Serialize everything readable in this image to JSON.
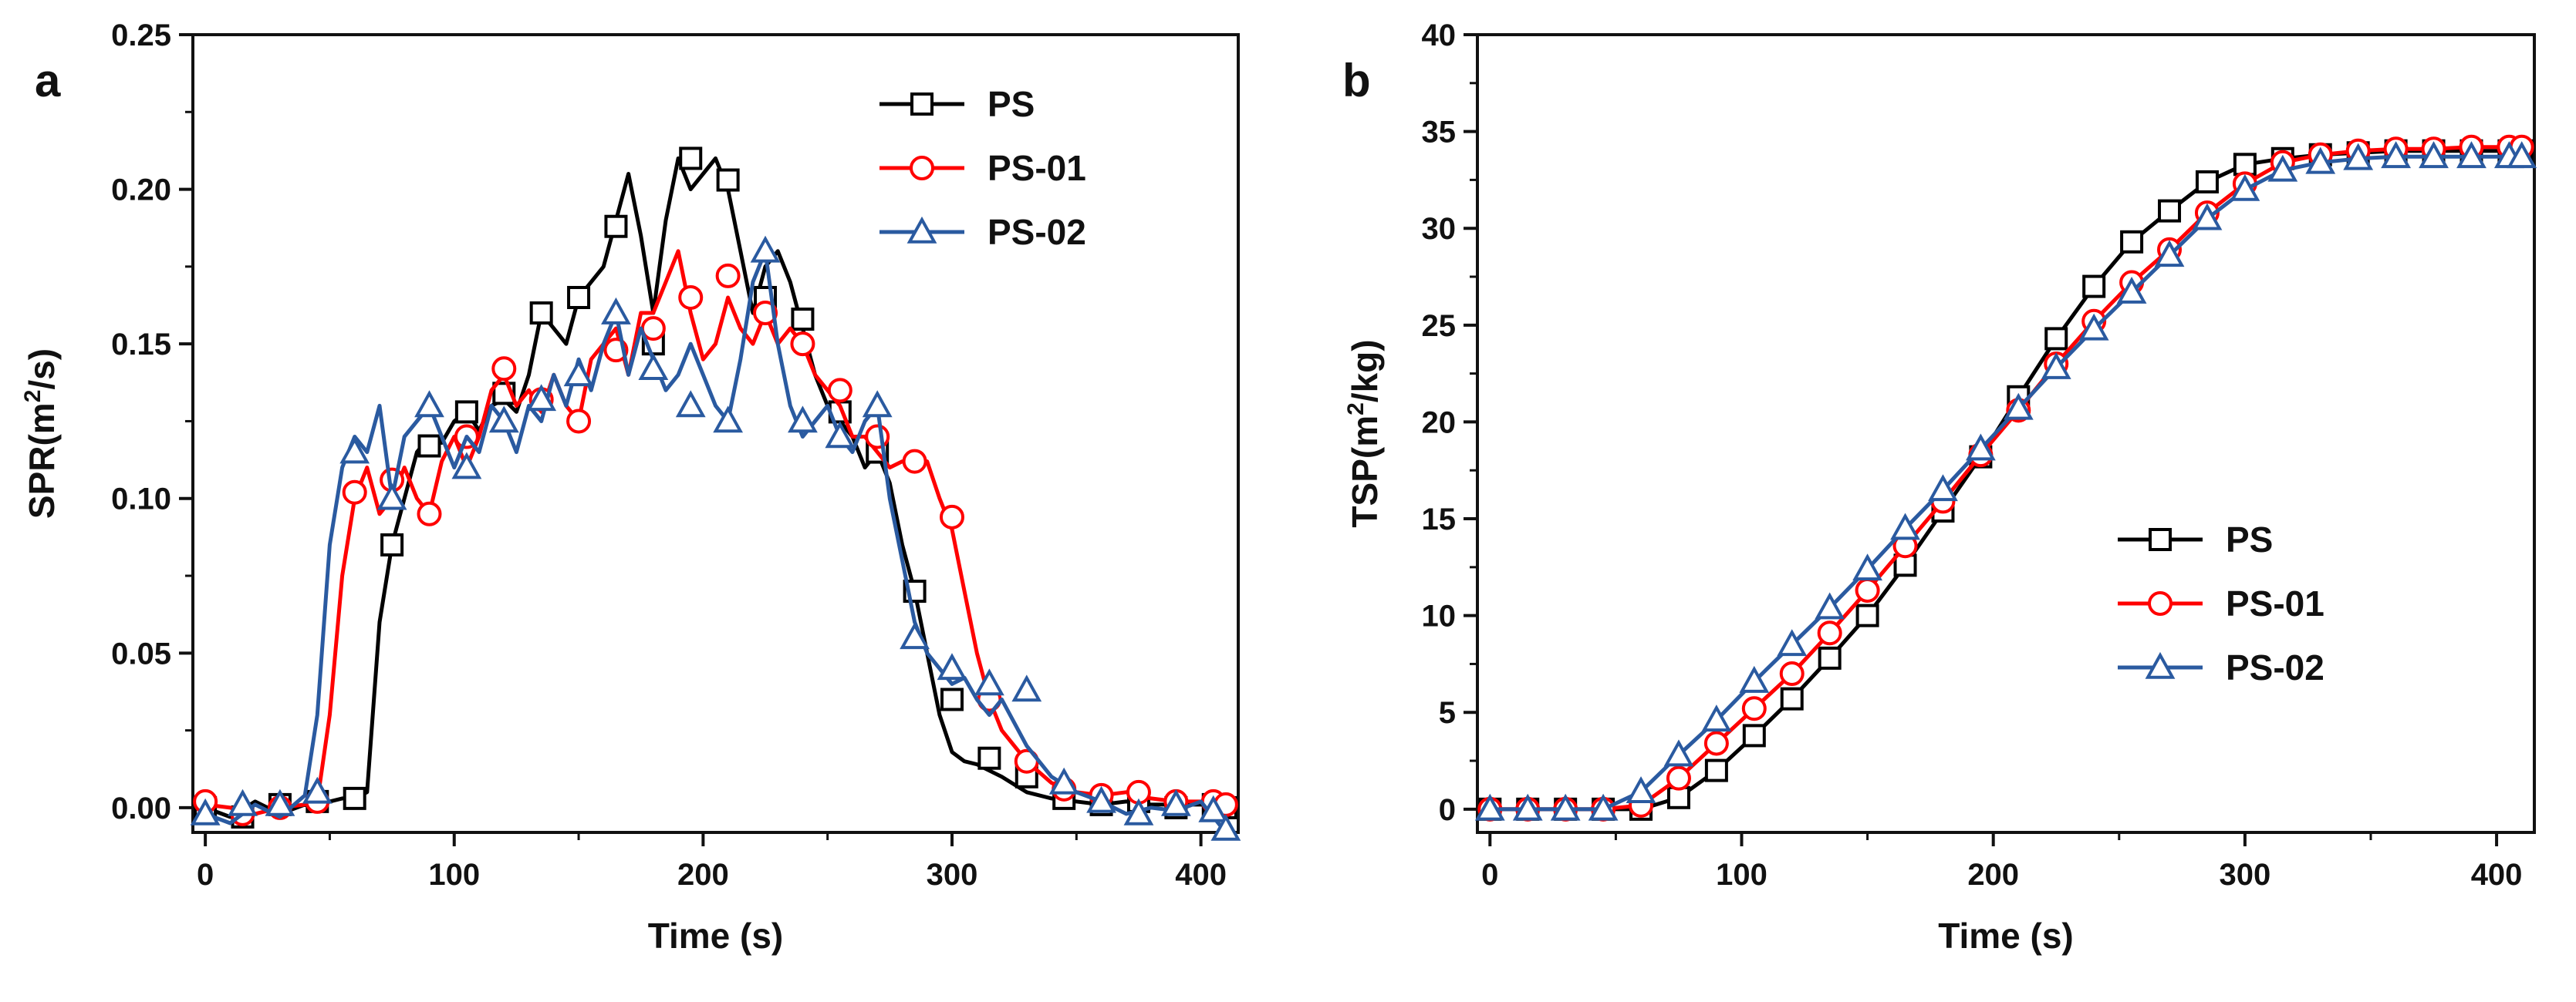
{
  "chart_data": [
    {
      "type": "line",
      "panel": "a",
      "xlabel": "Time (s)",
      "ylabel_main": "SPR(m",
      "ylabel_sup": "2",
      "ylabel_tail": "/s)",
      "xlim": [
        -5,
        415
      ],
      "ylim": [
        -0.008,
        0.25
      ],
      "xticks": [
        0,
        100,
        200,
        300,
        400
      ],
      "xtick_labels": [
        "0",
        "100",
        "200",
        "300",
        "400"
      ],
      "yticks": [
        0.0,
        0.05,
        0.1,
        0.15,
        0.2,
        0.25
      ],
      "ytick_labels": [
        "0.00",
        "0.05",
        "0.10",
        "0.15",
        "0.20",
        "0.25"
      ],
      "legend_position": "top-right",
      "series": [
        {
          "name": "PS",
          "color": "#000000",
          "marker": "square",
          "x": [
            0,
            10,
            20,
            30,
            40,
            45,
            50,
            55,
            60,
            65,
            70,
            75,
            80,
            85,
            90,
            95,
            100,
            105,
            110,
            115,
            120,
            125,
            130,
            135,
            140,
            145,
            150,
            155,
            160,
            165,
            170,
            175,
            180,
            185,
            190,
            195,
            200,
            205,
            210,
            215,
            220,
            225,
            230,
            235,
            240,
            245,
            250,
            255,
            260,
            265,
            270,
            275,
            280,
            285,
            290,
            295,
            300,
            305,
            310,
            315,
            320,
            330,
            340,
            350,
            360,
            370,
            380,
            390,
            400,
            410
          ],
          "y": [
            0.0,
            -0.003,
            0.002,
            -0.002,
            0.001,
            0.0,
            0.002,
            0.003,
            0.003,
            0.005,
            0.06,
            0.085,
            0.1,
            0.115,
            0.12,
            0.118,
            0.125,
            0.128,
            0.122,
            0.13,
            0.132,
            0.128,
            0.14,
            0.16,
            0.155,
            0.15,
            0.165,
            0.17,
            0.175,
            0.19,
            0.205,
            0.185,
            0.16,
            0.19,
            0.21,
            0.2,
            0.205,
            0.21,
            0.2,
            0.18,
            0.16,
            0.175,
            0.18,
            0.17,
            0.155,
            0.14,
            0.13,
            0.125,
            0.12,
            0.11,
            0.115,
            0.105,
            0.085,
            0.07,
            0.05,
            0.03,
            0.018,
            0.015,
            0.014,
            0.012,
            0.01,
            0.005,
            0.003,
            0.002,
            0.001,
            0.002,
            0.001,
            0.001,
            0.001,
            0.0
          ],
          "marker_x": [
            0,
            15,
            30,
            45,
            60,
            75,
            90,
            105,
            120,
            135,
            150,
            165,
            180,
            195,
            210,
            225,
            240,
            255,
            270,
            285,
            300,
            315,
            330,
            345,
            360,
            375,
            390,
            405,
            410
          ],
          "marker_y": [
            0.0,
            -0.003,
            0.001,
            0.002,
            0.003,
            0.085,
            0.117,
            0.128,
            0.134,
            0.16,
            0.165,
            0.188,
            0.15,
            0.21,
            0.203,
            0.165,
            0.158,
            0.128,
            0.115,
            0.07,
            0.035,
            0.016,
            0.01,
            0.003,
            0.001,
            0.002,
            0.0,
            0.001,
            0.0
          ]
        },
        {
          "name": "PS-01",
          "color": "#ff0000",
          "marker": "circle",
          "x": [
            0,
            10,
            20,
            30,
            40,
            45,
            50,
            55,
            60,
            65,
            70,
            75,
            80,
            85,
            90,
            95,
            100,
            105,
            110,
            115,
            120,
            125,
            130,
            135,
            140,
            145,
            150,
            155,
            160,
            165,
            170,
            175,
            180,
            185,
            190,
            195,
            200,
            205,
            210,
            215,
            220,
            225,
            230,
            235,
            240,
            245,
            250,
            255,
            260,
            265,
            270,
            275,
            280,
            285,
            290,
            295,
            300,
            305,
            310,
            315,
            320,
            330,
            340,
            350,
            360,
            370,
            380,
            390,
            400,
            410
          ],
          "y": [
            0.001,
            0.0,
            -0.002,
            0.0,
            0.001,
            0.002,
            0.03,
            0.075,
            0.1,
            0.11,
            0.095,
            0.1,
            0.11,
            0.1,
            0.095,
            0.112,
            0.12,
            0.11,
            0.12,
            0.135,
            0.14,
            0.13,
            0.135,
            0.128,
            0.14,
            0.13,
            0.125,
            0.145,
            0.15,
            0.155,
            0.14,
            0.16,
            0.16,
            0.17,
            0.18,
            0.16,
            0.145,
            0.15,
            0.165,
            0.155,
            0.15,
            0.16,
            0.15,
            0.155,
            0.15,
            0.14,
            0.135,
            0.13,
            0.12,
            0.12,
            0.115,
            0.11,
            0.112,
            0.11,
            0.112,
            0.1,
            0.09,
            0.07,
            0.05,
            0.035,
            0.025,
            0.015,
            0.008,
            0.005,
            0.004,
            0.005,
            0.003,
            0.002,
            0.002,
            0.001
          ],
          "marker_x": [
            0,
            15,
            30,
            45,
            60,
            75,
            90,
            105,
            120,
            135,
            150,
            165,
            180,
            195,
            210,
            225,
            240,
            255,
            270,
            285,
            300,
            315,
            330,
            345,
            360,
            375,
            390,
            405,
            410
          ],
          "marker_y": [
            0.002,
            -0.002,
            0.0,
            0.002,
            0.102,
            0.106,
            0.095,
            0.12,
            0.142,
            0.132,
            0.125,
            0.148,
            0.155,
            0.165,
            0.172,
            0.16,
            0.15,
            0.135,
            0.12,
            0.112,
            0.094,
            0.035,
            0.015,
            0.006,
            0.004,
            0.005,
            0.002,
            0.002,
            0.001
          ]
        },
        {
          "name": "PS-02",
          "color": "#2a5aa0",
          "marker": "triangle",
          "x": [
            0,
            10,
            20,
            30,
            40,
            45,
            50,
            55,
            60,
            65,
            70,
            75,
            80,
            85,
            90,
            95,
            100,
            105,
            110,
            115,
            120,
            125,
            130,
            135,
            140,
            145,
            150,
            155,
            160,
            165,
            170,
            175,
            180,
            185,
            190,
            195,
            200,
            205,
            210,
            215,
            220,
            225,
            230,
            235,
            240,
            245,
            250,
            255,
            260,
            265,
            270,
            275,
            280,
            285,
            290,
            295,
            300,
            305,
            310,
            315,
            320,
            330,
            340,
            350,
            360,
            370,
            380,
            390,
            400,
            410
          ],
          "y": [
            -0.002,
            -0.005,
            0.001,
            -0.003,
            0.004,
            0.03,
            0.085,
            0.11,
            0.12,
            0.115,
            0.13,
            0.1,
            0.12,
            0.125,
            0.13,
            0.12,
            0.11,
            0.12,
            0.115,
            0.13,
            0.125,
            0.115,
            0.13,
            0.125,
            0.14,
            0.13,
            0.145,
            0.135,
            0.15,
            0.16,
            0.14,
            0.155,
            0.145,
            0.135,
            0.14,
            0.15,
            0.14,
            0.13,
            0.125,
            0.145,
            0.17,
            0.18,
            0.15,
            0.13,
            0.12,
            0.125,
            0.13,
            0.12,
            0.115,
            0.125,
            0.13,
            0.1,
            0.08,
            0.06,
            0.05,
            0.045,
            0.04,
            0.042,
            0.035,
            0.03,
            0.035,
            0.02,
            0.01,
            0.005,
            0.002,
            -0.002,
            0.0,
            -0.001,
            0.002,
            -0.008
          ],
          "marker_x": [
            0,
            15,
            30,
            45,
            60,
            75,
            90,
            105,
            120,
            135,
            150,
            165,
            180,
            195,
            210,
            225,
            240,
            255,
            270,
            285,
            300,
            315,
            330,
            345,
            360,
            375,
            390,
            405,
            410
          ],
          "marker_y": [
            -0.002,
            0.001,
            0.001,
            0.005,
            0.115,
            0.1,
            0.13,
            0.11,
            0.125,
            0.132,
            0.14,
            0.16,
            0.142,
            0.13,
            0.125,
            0.18,
            0.125,
            0.12,
            0.13,
            0.055,
            0.045,
            0.04,
            0.038,
            0.008,
            0.002,
            -0.002,
            0.001,
            -0.001,
            -0.007
          ]
        }
      ]
    },
    {
      "type": "line",
      "panel": "b",
      "xlabel": "Time (s)",
      "ylabel_main": "TSP(m",
      "ylabel_sup": "2",
      "ylabel_tail": "/kg)",
      "xlim": [
        -5,
        415
      ],
      "ylim": [
        -1.2,
        40
      ],
      "xticks": [
        0,
        100,
        200,
        300,
        400
      ],
      "xtick_labels": [
        "0",
        "100",
        "200",
        "300",
        "400"
      ],
      "yticks": [
        0,
        5,
        10,
        15,
        20,
        25,
        30,
        35,
        40
      ],
      "ytick_labels": [
        "0",
        "5",
        "10",
        "15",
        "20",
        "25",
        "30",
        "35",
        "40"
      ],
      "legend_position": "bottom-right",
      "series": [
        {
          "name": "PS",
          "color": "#000000",
          "marker": "square",
          "x": [
            0,
            15,
            30,
            45,
            60,
            75,
            90,
            105,
            120,
            135,
            150,
            165,
            180,
            195,
            210,
            225,
            240,
            255,
            270,
            285,
            300,
            315,
            330,
            345,
            360,
            375,
            390,
            405,
            410
          ],
          "y": [
            0,
            0,
            0,
            0,
            0,
            0.6,
            2,
            3.8,
            5.7,
            7.8,
            10,
            12.6,
            15.4,
            18.2,
            21.3,
            24.3,
            27,
            29.3,
            30.9,
            32.4,
            33.3,
            33.6,
            33.8,
            33.9,
            34,
            34,
            34,
            34,
            34
          ]
        },
        {
          "name": "PS-01",
          "color": "#ff0000",
          "marker": "circle",
          "x": [
            0,
            15,
            30,
            45,
            60,
            75,
            90,
            105,
            120,
            135,
            150,
            165,
            180,
            195,
            210,
            225,
            240,
            255,
            270,
            285,
            300,
            315,
            330,
            345,
            360,
            375,
            390,
            405,
            410
          ],
          "y": [
            0,
            0,
            0,
            0,
            0.2,
            1.6,
            3.4,
            5.2,
            7,
            9.1,
            11.3,
            13.6,
            15.9,
            18.3,
            20.6,
            23,
            25.2,
            27.2,
            28.9,
            30.8,
            32.3,
            33.4,
            33.8,
            34,
            34.1,
            34.1,
            34.2,
            34.2,
            34.2
          ]
        },
        {
          "name": "PS-02",
          "color": "#2a5aa0",
          "marker": "triangle",
          "x": [
            0,
            15,
            30,
            45,
            60,
            75,
            90,
            105,
            120,
            135,
            150,
            165,
            180,
            195,
            210,
            225,
            240,
            255,
            270,
            285,
            300,
            315,
            330,
            345,
            360,
            375,
            390,
            405,
            410
          ],
          "y": [
            0,
            0,
            0,
            0,
            0.9,
            2.8,
            4.6,
            6.6,
            8.5,
            10.4,
            12.4,
            14.5,
            16.5,
            18.6,
            20.7,
            22.8,
            24.8,
            26.7,
            28.6,
            30.5,
            32,
            33,
            33.4,
            33.6,
            33.7,
            33.7,
            33.7,
            33.7,
            33.7
          ]
        }
      ]
    }
  ]
}
